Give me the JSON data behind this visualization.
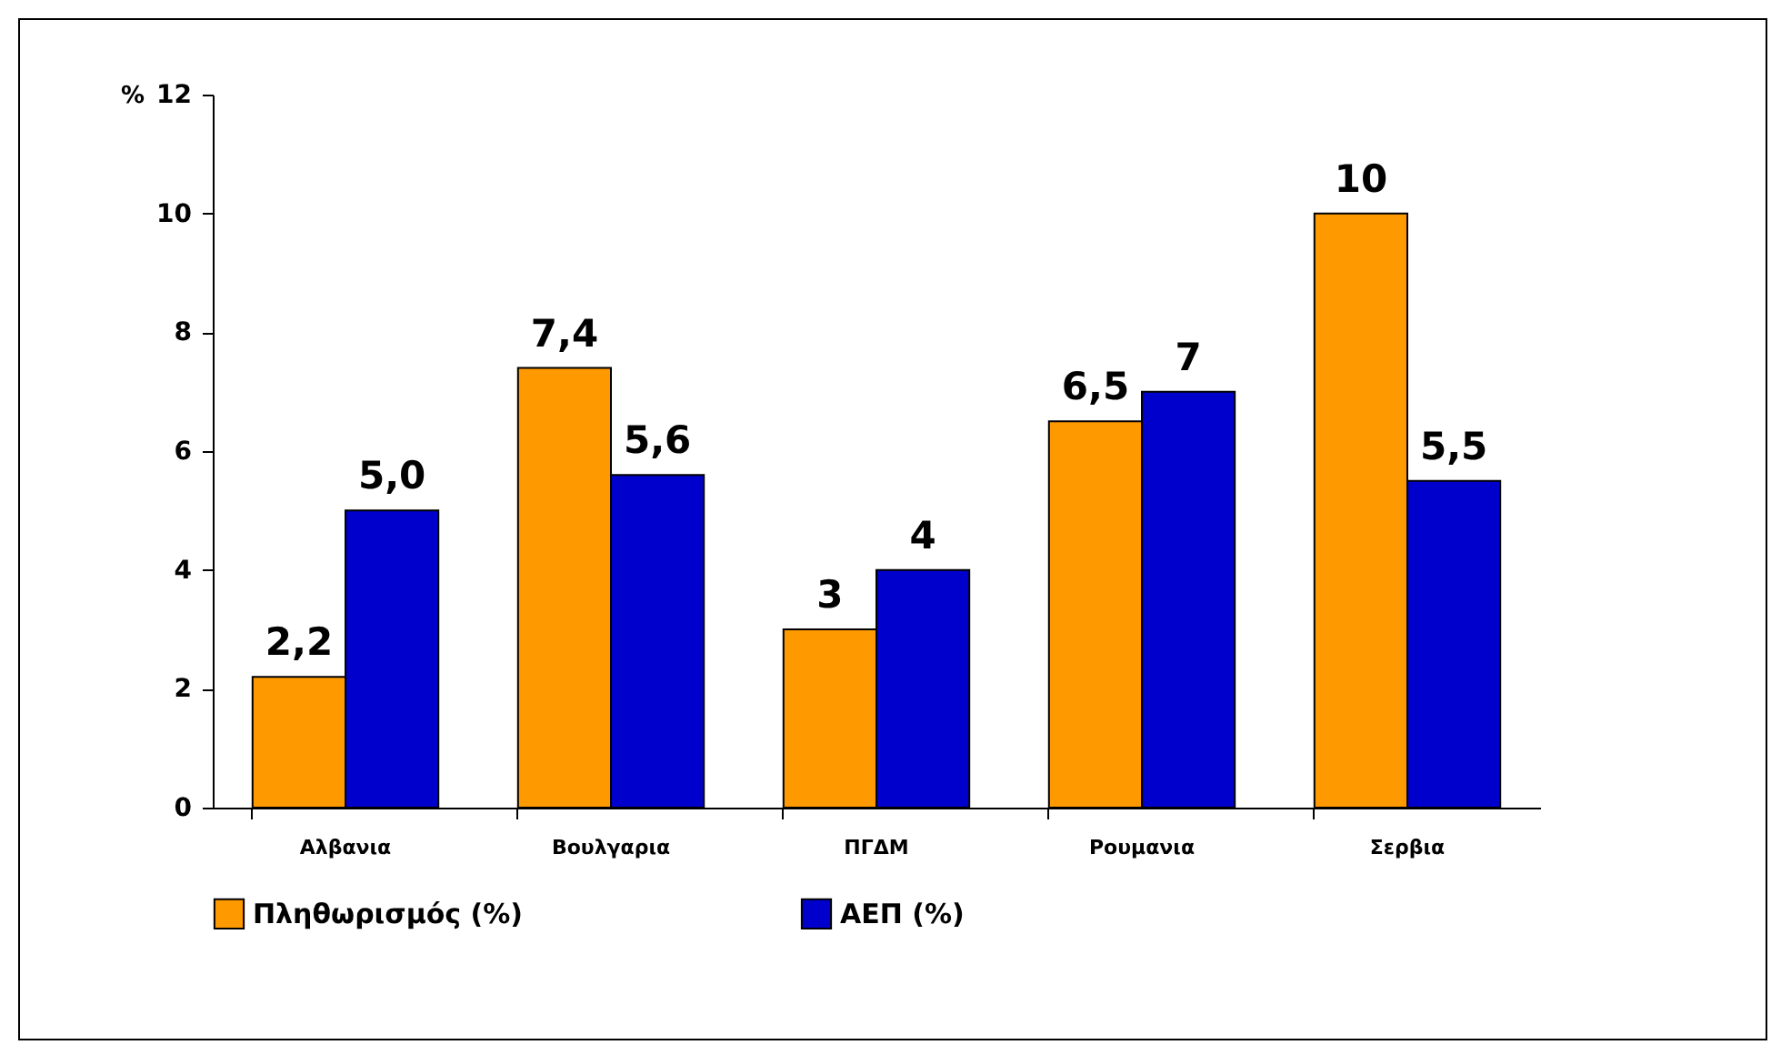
{
  "chart_data": {
    "type": "bar",
    "ylabel": "%",
    "categories": [
      "Αλβανια",
      "Βουλγαρια",
      "ΠΓΔΜ",
      "Ρουμανια",
      "Σερβια"
    ],
    "series": [
      {
        "name": "Πληθωρισμός (%)",
        "color": "#ff9900",
        "values": [
          2.2,
          7.4,
          3,
          6.5,
          10
        ],
        "value_labels": [
          "2,2",
          "7,4",
          "3",
          "6,5",
          "10"
        ]
      },
      {
        "name": "ΑΕΠ (%)",
        "color": "#0000cc",
        "values": [
          5.0,
          5.6,
          4,
          7,
          5.5
        ],
        "value_labels": [
          "5,0",
          "5,6",
          "4",
          "7",
          "5,5"
        ]
      }
    ],
    "ylim": [
      0,
      12
    ],
    "yticks": [
      0,
      2,
      4,
      6,
      8,
      10,
      12
    ],
    "grid": false,
    "legend": "bottom"
  }
}
